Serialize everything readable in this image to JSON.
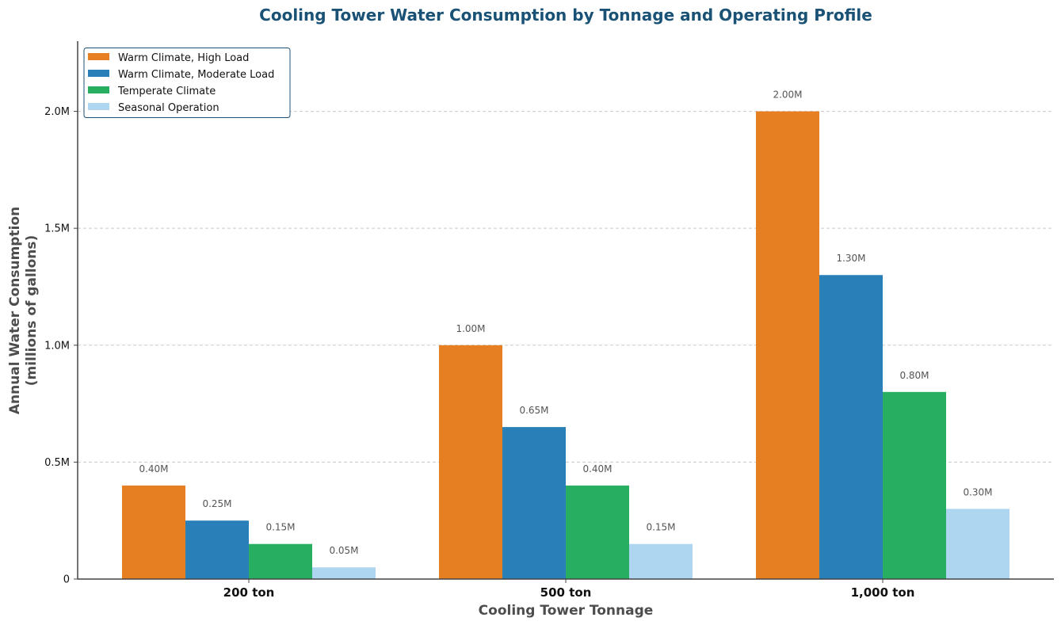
{
  "chart_data": {
    "type": "bar",
    "title": "Cooling Tower Water Consumption by Tonnage and Operating Profile",
    "xlabel": "Cooling Tower Tonnage",
    "ylabel": "Annual Water Consumption\n(millions of gallons)",
    "ylabel_lines": [
      "Annual Water Consumption",
      "(millions of gallons)"
    ],
    "categories": [
      "200 ton",
      "500 ton",
      "1,000 ton"
    ],
    "ylim": [
      0,
      2.3
    ],
    "yticks": [
      0,
      0.5,
      1.0,
      1.5,
      2.0
    ],
    "ytick_labels": [
      "0",
      "0.5M",
      "1.0M",
      "1.5M",
      "2.0M"
    ],
    "grid": "y-dashed",
    "legend_position": "top-left",
    "series": [
      {
        "name": "Warm Climate, High Load",
        "color": "#e67e22",
        "values": [
          0.4,
          1.0,
          2.0
        ],
        "labels": [
          "0.40M",
          "1.00M",
          "2.00M"
        ]
      },
      {
        "name": "Warm Climate, Moderate Load",
        "color": "#2980b9",
        "values": [
          0.25,
          0.65,
          1.3
        ],
        "labels": [
          "0.25M",
          "0.65M",
          "1.30M"
        ]
      },
      {
        "name": "Temperate Climate",
        "color": "#27ae60",
        "values": [
          0.15,
          0.4,
          0.8
        ],
        "labels": [
          "0.15M",
          "0.40M",
          "0.80M"
        ]
      },
      {
        "name": "Seasonal Operation",
        "color": "#aed6f1",
        "values": [
          0.05,
          0.15,
          0.3
        ],
        "labels": [
          "0.05M",
          "0.15M",
          "0.30M"
        ]
      }
    ]
  }
}
